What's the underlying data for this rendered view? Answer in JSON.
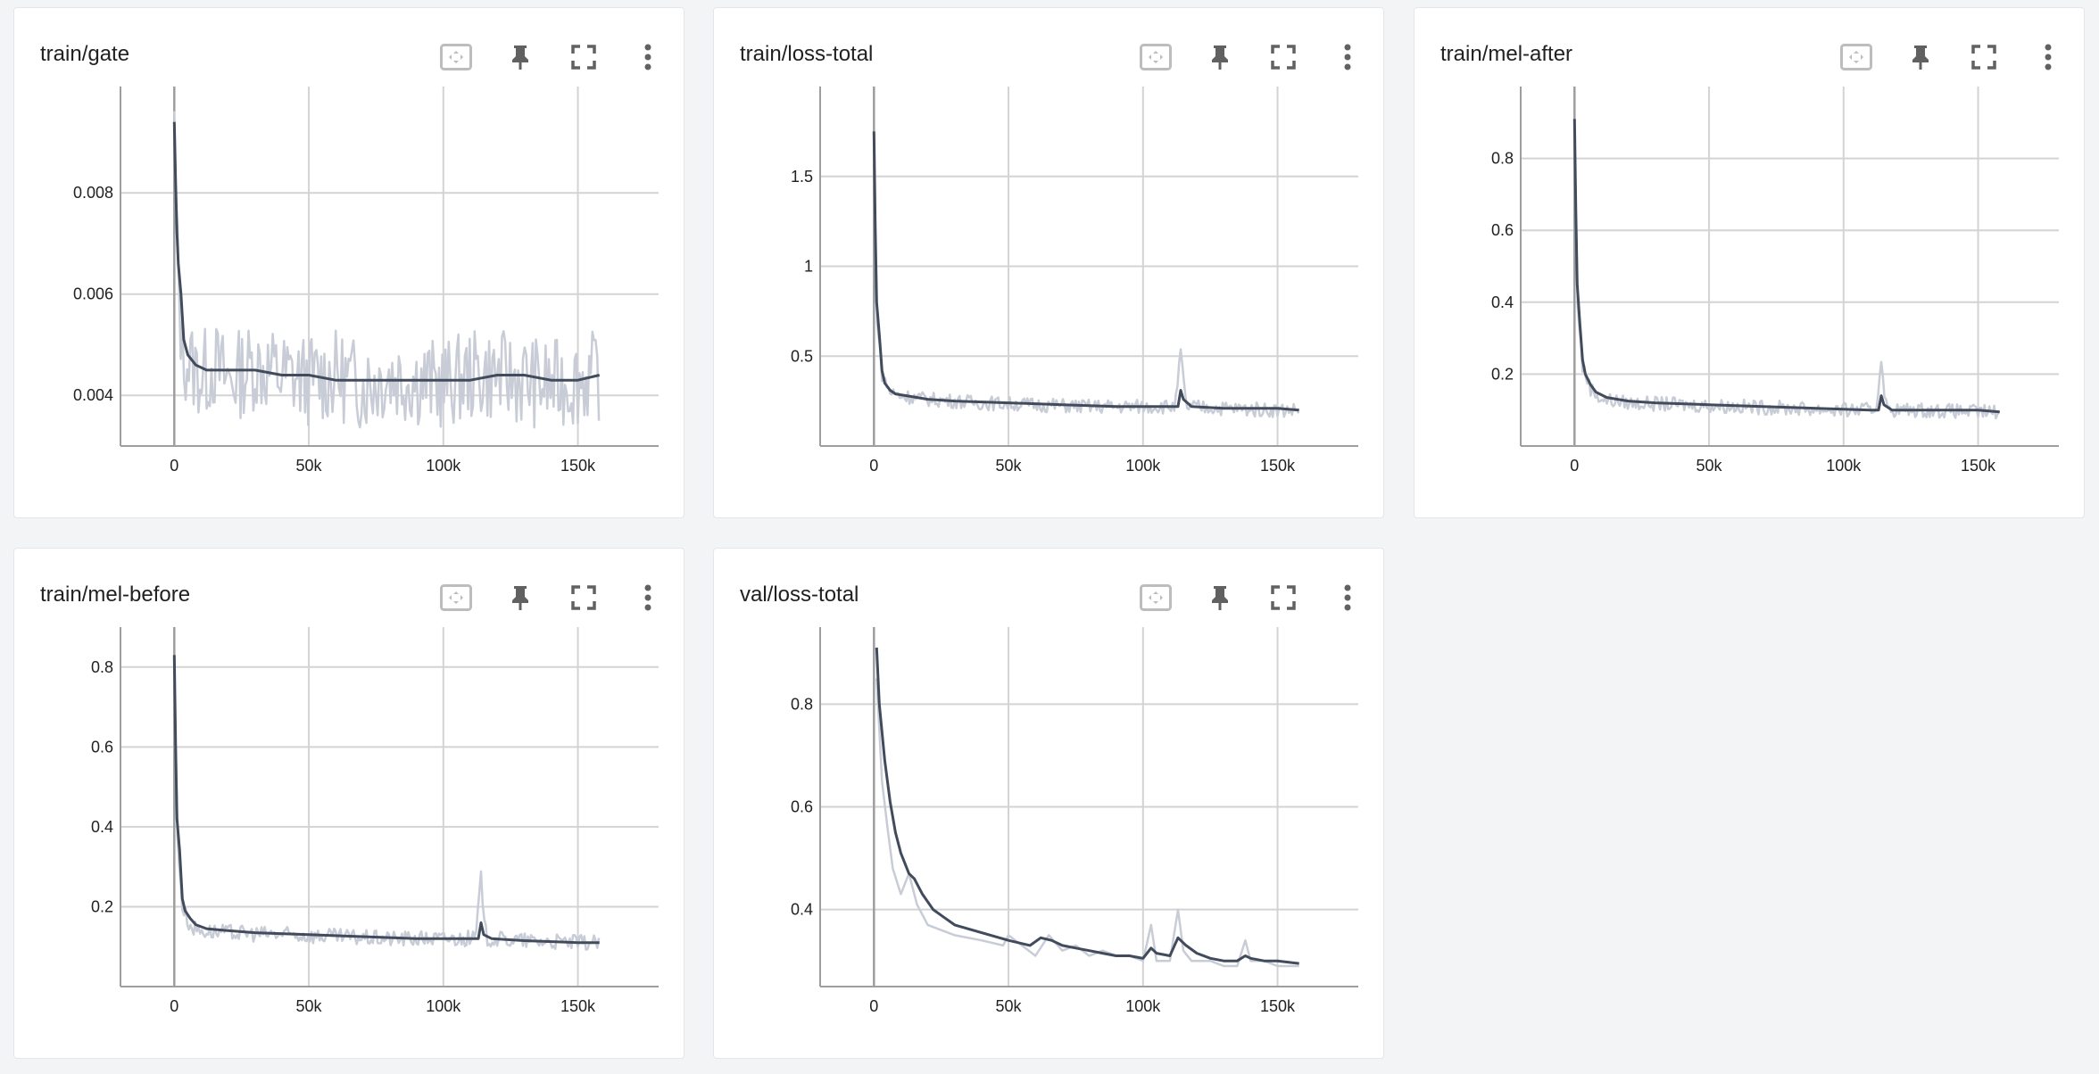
{
  "colors": {
    "smoothed": "#424b5c",
    "raw": "#c8ccd6",
    "grid": "#d3d3d3",
    "zero_axis": "#9e9e9e",
    "icon": "#616161",
    "icon_inactive": "#bdbdbd"
  },
  "card_icons": [
    "fit-domain-icon",
    "pin-icon",
    "fullscreen-icon",
    "more-vert-icon"
  ],
  "chart_data": [
    {
      "type": "line",
      "title": "train/gate",
      "xlabel": "",
      "ylabel": "",
      "xlim": [
        -20000,
        180000
      ],
      "ylim": [
        0.003,
        0.0101
      ],
      "xticks": [
        0,
        50000,
        100000,
        150000
      ],
      "xtick_labels": [
        "0",
        "50k",
        "100k",
        "150k"
      ],
      "yticks": [
        0.004,
        0.006,
        0.008
      ],
      "ytick_labels": [
        "0.004",
        "0.006",
        "0.008"
      ],
      "grid": true,
      "series": [
        {
          "role": "smoothed",
          "x": [
            0,
            500,
            1000,
            1500,
            2500,
            3500,
            5000,
            8000,
            12000,
            20000,
            30000,
            40000,
            50000,
            60000,
            70000,
            80000,
            90000,
            100000,
            110000,
            120000,
            130000,
            140000,
            150000,
            158000
          ],
          "y": [
            0.0094,
            0.0082,
            0.0072,
            0.0066,
            0.006,
            0.0051,
            0.0048,
            0.0046,
            0.0045,
            0.0045,
            0.0045,
            0.0044,
            0.0044,
            0.0043,
            0.0043,
            0.0043,
            0.0043,
            0.0043,
            0.0043,
            0.0044,
            0.0044,
            0.0043,
            0.0043,
            0.0044
          ]
        },
        {
          "role": "raw",
          "x": [
            0,
            1000,
            3000,
            6000,
            10000,
            15000,
            20000,
            30000,
            40000,
            50000,
            60000,
            70000,
            80000,
            90000,
            100000,
            110000,
            120000,
            130000,
            140000,
            150000,
            158000
          ],
          "y": [
            0.0092,
            0.0068,
            0.0048,
            0.0046,
            0.0044,
            0.0046,
            0.0043,
            0.0046,
            0.0044,
            0.0043,
            0.0044,
            0.0042,
            0.0044,
            0.0043,
            0.0042,
            0.0044,
            0.0044,
            0.0043,
            0.0042,
            0.0043,
            0.0044
          ],
          "noise": 0.0009
        }
      ]
    },
    {
      "type": "line",
      "title": "train/loss-total",
      "xlabel": "",
      "ylabel": "",
      "xlim": [
        -20000,
        180000
      ],
      "ylim": [
        0,
        2
      ],
      "xticks": [
        0,
        50000,
        100000,
        150000
      ],
      "xtick_labels": [
        "0",
        "50k",
        "100k",
        "150k"
      ],
      "yticks": [
        0.5,
        1,
        1.5
      ],
      "ytick_labels": [
        "0.5",
        "1",
        "1.5"
      ],
      "grid": true,
      "series": [
        {
          "role": "smoothed",
          "x": [
            0,
            500,
            1000,
            2000,
            3000,
            4000,
            6000,
            8000,
            12000,
            20000,
            30000,
            50000,
            70000,
            90000,
            110000,
            113000,
            114000,
            115000,
            118000,
            130000,
            150000,
            158000
          ],
          "y": [
            1.75,
            1.2,
            0.8,
            0.62,
            0.42,
            0.35,
            0.31,
            0.29,
            0.28,
            0.26,
            0.25,
            0.24,
            0.23,
            0.22,
            0.22,
            0.22,
            0.31,
            0.26,
            0.22,
            0.21,
            0.21,
            0.2
          ]
        },
        {
          "role": "raw",
          "x": [
            0,
            1000,
            3000,
            6000,
            10000,
            20000,
            40000,
            60000,
            80000,
            100000,
            112000,
            114000,
            116000,
            130000,
            150000,
            158000
          ],
          "y": [
            1.7,
            0.75,
            0.4,
            0.3,
            0.28,
            0.26,
            0.24,
            0.23,
            0.22,
            0.22,
            0.22,
            0.52,
            0.22,
            0.21,
            0.2,
            0.2
          ],
          "noise": 0.04
        }
      ]
    },
    {
      "type": "line",
      "title": "train/mel-after",
      "xlabel": "",
      "ylabel": "",
      "xlim": [
        -20000,
        180000
      ],
      "ylim": [
        0,
        1.0
      ],
      "xticks": [
        0,
        50000,
        100000,
        150000
      ],
      "xtick_labels": [
        "0",
        "50k",
        "100k",
        "150k"
      ],
      "yticks": [
        0.2,
        0.4,
        0.6,
        0.8
      ],
      "ytick_labels": [
        "0.2",
        "0.4",
        "0.6",
        "0.8"
      ],
      "grid": true,
      "series": [
        {
          "role": "smoothed",
          "x": [
            0,
            500,
            1000,
            2000,
            3000,
            4000,
            6000,
            8000,
            12000,
            20000,
            30000,
            50000,
            70000,
            90000,
            110000,
            113000,
            114000,
            115000,
            118000,
            130000,
            150000,
            158000
          ],
          "y": [
            0.91,
            0.65,
            0.45,
            0.34,
            0.24,
            0.2,
            0.17,
            0.15,
            0.135,
            0.125,
            0.12,
            0.115,
            0.11,
            0.105,
            0.1,
            0.1,
            0.14,
            0.115,
            0.1,
            0.1,
            0.1,
            0.095
          ]
        },
        {
          "role": "raw",
          "x": [
            0,
            1000,
            3000,
            6000,
            10000,
            20000,
            40000,
            60000,
            80000,
            100000,
            112000,
            114000,
            116000,
            130000,
            150000,
            158000
          ],
          "y": [
            0.88,
            0.42,
            0.22,
            0.16,
            0.13,
            0.12,
            0.115,
            0.11,
            0.105,
            0.1,
            0.1,
            0.24,
            0.1,
            0.1,
            0.095,
            0.095
          ],
          "noise": 0.02
        }
      ]
    },
    {
      "type": "line",
      "title": "train/mel-before",
      "xlabel": "",
      "ylabel": "",
      "xlim": [
        -20000,
        180000
      ],
      "ylim": [
        0,
        0.9
      ],
      "xticks": [
        0,
        50000,
        100000,
        150000
      ],
      "xtick_labels": [
        "0",
        "50k",
        "100k",
        "150k"
      ],
      "yticks": [
        0.2,
        0.4,
        0.6,
        0.8
      ],
      "ytick_labels": [
        "0.2",
        "0.4",
        "0.6",
        "0.8"
      ],
      "grid": true,
      "series": [
        {
          "role": "smoothed",
          "x": [
            0,
            500,
            1000,
            2000,
            3000,
            4000,
            6000,
            8000,
            12000,
            20000,
            30000,
            50000,
            70000,
            90000,
            110000,
            113000,
            114000,
            115000,
            118000,
            130000,
            150000,
            158000
          ],
          "y": [
            0.83,
            0.6,
            0.42,
            0.34,
            0.22,
            0.19,
            0.17,
            0.155,
            0.145,
            0.14,
            0.135,
            0.13,
            0.125,
            0.12,
            0.12,
            0.12,
            0.16,
            0.13,
            0.12,
            0.115,
            0.11,
            0.11
          ]
        },
        {
          "role": "raw",
          "x": [
            0,
            1000,
            3000,
            6000,
            10000,
            20000,
            40000,
            60000,
            80000,
            100000,
            112000,
            114000,
            116000,
            130000,
            150000,
            158000
          ],
          "y": [
            0.8,
            0.4,
            0.2,
            0.15,
            0.14,
            0.135,
            0.13,
            0.125,
            0.12,
            0.12,
            0.12,
            0.27,
            0.12,
            0.115,
            0.11,
            0.11
          ],
          "noise": 0.02
        }
      ]
    },
    {
      "type": "line",
      "title": "val/loss-total",
      "xlabel": "",
      "ylabel": "",
      "xlim": [
        -20000,
        180000
      ],
      "ylim": [
        0.25,
        0.95
      ],
      "xticks": [
        0,
        50000,
        100000,
        150000
      ],
      "xtick_labels": [
        "0",
        "50k",
        "100k",
        "150k"
      ],
      "yticks": [
        0.4,
        0.6,
        0.8
      ],
      "ytick_labels": [
        "0.4",
        "0.6",
        "0.8"
      ],
      "grid": true,
      "series": [
        {
          "role": "raw",
          "x": [
            1000,
            3000,
            5000,
            7000,
            10000,
            13000,
            16000,
            20000,
            25000,
            30000,
            40000,
            48000,
            50000,
            55000,
            60000,
            65000,
            70000,
            75000,
            80000,
            85000,
            90000,
            95000,
            100000,
            103000,
            105000,
            110000,
            113000,
            115000,
            118000,
            125000,
            130000,
            135000,
            138000,
            140000,
            145000,
            150000,
            155000,
            158000
          ],
          "y": [
            0.85,
            0.65,
            0.56,
            0.48,
            0.43,
            0.47,
            0.41,
            0.37,
            0.36,
            0.35,
            0.34,
            0.33,
            0.35,
            0.33,
            0.31,
            0.35,
            0.32,
            0.33,
            0.31,
            0.32,
            0.31,
            0.31,
            0.3,
            0.37,
            0.3,
            0.3,
            0.4,
            0.32,
            0.3,
            0.3,
            0.29,
            0.29,
            0.34,
            0.3,
            0.3,
            0.29,
            0.29,
            0.29
          ]
        },
        {
          "role": "smoothed",
          "x": [
            1000,
            2000,
            4000,
            6000,
            8000,
            10000,
            13000,
            15000,
            18000,
            22000,
            26000,
            30000,
            40000,
            50000,
            58000,
            62000,
            66000,
            70000,
            75000,
            80000,
            85000,
            90000,
            95000,
            100000,
            103000,
            105000,
            110000,
            113000,
            116000,
            120000,
            125000,
            130000,
            135000,
            138000,
            140000,
            145000,
            150000,
            158000
          ],
          "y": [
            0.91,
            0.8,
            0.69,
            0.61,
            0.55,
            0.51,
            0.47,
            0.46,
            0.43,
            0.4,
            0.385,
            0.37,
            0.355,
            0.34,
            0.33,
            0.345,
            0.34,
            0.33,
            0.325,
            0.32,
            0.315,
            0.31,
            0.31,
            0.305,
            0.325,
            0.315,
            0.31,
            0.345,
            0.33,
            0.315,
            0.305,
            0.3,
            0.3,
            0.31,
            0.305,
            0.3,
            0.3,
            0.295
          ]
        }
      ]
    }
  ]
}
